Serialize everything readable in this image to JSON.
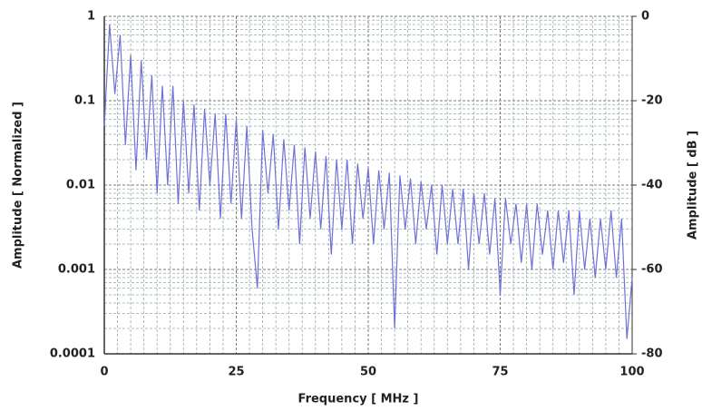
{
  "chart_data": {
    "type": "line",
    "log_y": true,
    "grid": true,
    "xlabel": "Frequency [ MHz ]",
    "ylabel": "Amplitude [ Normalized ]",
    "y2label": "Amplitude [ dB ]",
    "xlim": [
      0,
      100
    ],
    "xticks": [
      0,
      25,
      50,
      75,
      100
    ],
    "xminorticks": [
      2.5,
      5,
      7.5,
      10,
      12.5,
      15,
      17.5,
      20,
      22.5,
      27.5,
      30,
      32.5,
      35,
      37.5,
      40,
      42.5,
      45,
      47.5,
      52.5,
      55,
      57.5,
      60,
      62.5,
      65,
      67.5,
      70,
      72.5,
      77.5,
      80,
      82.5,
      85,
      87.5,
      90,
      92.5,
      95,
      97.5
    ],
    "ylim": [
      0.0001,
      1
    ],
    "yticks": [
      0.0001,
      0.001,
      0.01,
      0.1,
      1
    ],
    "yminorticks": [
      0.0002,
      0.0003,
      0.0004,
      0.0005,
      0.0006,
      0.0007,
      0.0008,
      0.0009,
      0.002,
      0.003,
      0.004,
      0.005,
      0.006,
      0.007,
      0.008,
      0.009,
      0.02,
      0.03,
      0.04,
      0.05,
      0.06,
      0.07,
      0.08,
      0.09,
      0.2,
      0.3,
      0.4,
      0.5,
      0.6,
      0.7,
      0.8,
      0.9
    ],
    "y2lim": [
      -80,
      0
    ],
    "y2ticks": [
      -80,
      -60,
      -40,
      -20,
      0
    ],
    "x": [
      0,
      1,
      2,
      3,
      4,
      5,
      6,
      7,
      8,
      9,
      10,
      11,
      12,
      13,
      14,
      15,
      16,
      17,
      18,
      19,
      20,
      21,
      22,
      23,
      24,
      25,
      26,
      27,
      28,
      29,
      30,
      31,
      32,
      33,
      34,
      35,
      36,
      37,
      38,
      39,
      40,
      41,
      42,
      43,
      44,
      45,
      46,
      47,
      48,
      49,
      50,
      51,
      52,
      53,
      54,
      55,
      56,
      57,
      58,
      59,
      60,
      61,
      62,
      63,
      64,
      65,
      66,
      67,
      68,
      69,
      70,
      71,
      72,
      73,
      74,
      75,
      76,
      77,
      78,
      79,
      80,
      81,
      82,
      83,
      84,
      85,
      86,
      87,
      88,
      89,
      90,
      91,
      92,
      93,
      94,
      95,
      96,
      97,
      98,
      99,
      100
    ],
    "series": [
      {
        "color": "#6e72d8",
        "values": [
          0.05,
          0.8,
          0.12,
          0.6,
          0.03,
          0.35,
          0.015,
          0.3,
          0.02,
          0.2,
          0.008,
          0.15,
          0.01,
          0.15,
          0.006,
          0.1,
          0.008,
          0.09,
          0.005,
          0.08,
          0.01,
          0.07,
          0.004,
          0.07,
          0.006,
          0.06,
          0.004,
          0.05,
          0.003,
          0.0006,
          0.045,
          0.008,
          0.04,
          0.003,
          0.035,
          0.005,
          0.03,
          0.002,
          0.028,
          0.004,
          0.025,
          0.003,
          0.022,
          0.0015,
          0.02,
          0.003,
          0.02,
          0.002,
          0.018,
          0.004,
          0.016,
          0.002,
          0.015,
          0.003,
          0.014,
          0.0002,
          0.013,
          0.003,
          0.012,
          0.002,
          0.011,
          0.003,
          0.01,
          0.0015,
          0.01,
          0.002,
          0.009,
          0.002,
          0.009,
          0.001,
          0.008,
          0.002,
          0.008,
          0.0015,
          0.007,
          0.0005,
          0.007,
          0.002,
          0.006,
          0.0012,
          0.006,
          0.001,
          0.006,
          0.0015,
          0.005,
          0.001,
          0.005,
          0.0012,
          0.005,
          0.0005,
          0.005,
          0.001,
          0.004,
          0.0008,
          0.004,
          0.001,
          0.005,
          0.0008,
          0.004,
          0.00015,
          0.0008
        ]
      }
    ]
  }
}
